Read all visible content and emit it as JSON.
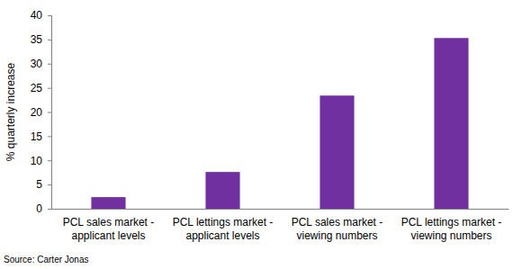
{
  "chart_data": {
    "type": "bar",
    "y_label": "% quarterly increase",
    "categories": [
      "PCL sales market - applicant levels",
      "PCL lettings market - applicant levels",
      "PCL sales market - viewing numbers",
      "PCL lettings market - viewing numbers"
    ],
    "values": [
      2.4,
      7.6,
      23.4,
      35.3
    ],
    "color": "#7030a0",
    "ylim": [
      0,
      40
    ],
    "yticks": [
      0,
      5,
      10,
      15,
      20,
      25,
      30,
      35,
      40
    ],
    "grid": false,
    "source": "Source: Carter Jonas"
  }
}
